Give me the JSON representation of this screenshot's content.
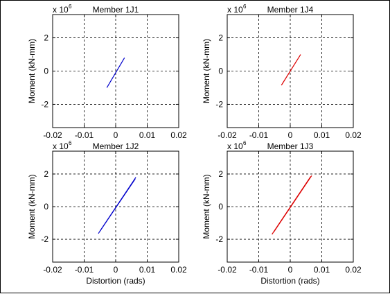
{
  "figure": {
    "background": "#ffffff",
    "frame_color": "#000000"
  },
  "chart_data": [
    {
      "type": "line",
      "title": "Member 1J1",
      "xlabel": "",
      "ylabel": "Moment (kN-mm)",
      "scale_prefix": "x 10",
      "scale_exponent": "6",
      "xlim": [
        -0.02,
        0.02
      ],
      "ylim": [
        -3.4,
        3.4
      ],
      "xticks": [
        "-0.02",
        "-0.01",
        "0",
        "0.01",
        "0.02"
      ],
      "yticks": [
        "2",
        "0",
        "-2"
      ],
      "xtick_values": [
        -0.02,
        -0.01,
        0,
        0.01,
        0.02
      ],
      "ytick_values": [
        2,
        0,
        -2
      ],
      "grid": true,
      "series": [
        {
          "color": "#0000cc",
          "x": [
            -0.0028,
            0.0028
          ],
          "y": [
            -1.0,
            0.8
          ]
        }
      ]
    },
    {
      "type": "line",
      "title": "Member 1J4",
      "xlabel": "",
      "ylabel": "Moment (kN-mm)",
      "scale_prefix": "x 10",
      "scale_exponent": "6",
      "xlim": [
        -0.02,
        0.02
      ],
      "ylim": [
        -3.4,
        3.4
      ],
      "xticks": [
        "-0.02",
        "-0.01",
        "0",
        "0.01",
        "0.02"
      ],
      "yticks": [
        "2",
        "0",
        "-2"
      ],
      "xtick_values": [
        -0.02,
        -0.01,
        0,
        0.01,
        0.02
      ],
      "ytick_values": [
        2,
        0,
        -2
      ],
      "grid": true,
      "series": [
        {
          "color": "#dd0000",
          "x": [
            -0.0028,
            0.0033
          ],
          "y": [
            -0.85,
            1.0
          ]
        }
      ]
    },
    {
      "type": "line",
      "title": "Member 1J2",
      "xlabel": "Distortion (rads)",
      "ylabel": "Moment (kN-mm)",
      "scale_prefix": "x 10",
      "scale_exponent": "6",
      "xlim": [
        -0.02,
        0.02
      ],
      "ylim": [
        -3.4,
        3.4
      ],
      "xticks": [
        "-0.02",
        "-0.01",
        "0",
        "0.01",
        "0.02"
      ],
      "yticks": [
        "2",
        "0",
        "-2"
      ],
      "xtick_values": [
        -0.02,
        -0.01,
        0,
        0.01,
        0.02
      ],
      "ytick_values": [
        2,
        0,
        -2
      ],
      "grid": true,
      "series": [
        {
          "color": "#0000cc",
          "x": [
            -0.0055,
            0.0062
          ],
          "y": [
            -1.65,
            1.7
          ]
        },
        {
          "color": "#0000cc",
          "x": [
            -0.005,
            0.0064
          ],
          "y": [
            -1.5,
            1.8
          ]
        }
      ]
    },
    {
      "type": "line",
      "title": "Member 1J3",
      "xlabel": "Distortion (rads)",
      "ylabel": "Moment (kN-mm)",
      "scale_prefix": "x 10",
      "scale_exponent": "6",
      "xlim": [
        -0.02,
        0.02
      ],
      "ylim": [
        -3.4,
        3.4
      ],
      "xticks": [
        "-0.02",
        "-0.01",
        "0",
        "0.01",
        "0.02"
      ],
      "yticks": [
        "2",
        "0",
        "-2"
      ],
      "xtick_values": [
        -0.02,
        -0.01,
        0,
        0.01,
        0.02
      ],
      "ytick_values": [
        2,
        0,
        -2
      ],
      "grid": true,
      "series": [
        {
          "color": "#dd0000",
          "x": [
            -0.0058,
            0.0065
          ],
          "y": [
            -1.7,
            1.85
          ]
        },
        {
          "color": "#dd0000",
          "x": [
            -0.0052,
            0.0068
          ],
          "y": [
            -1.55,
            1.9
          ]
        }
      ]
    }
  ]
}
